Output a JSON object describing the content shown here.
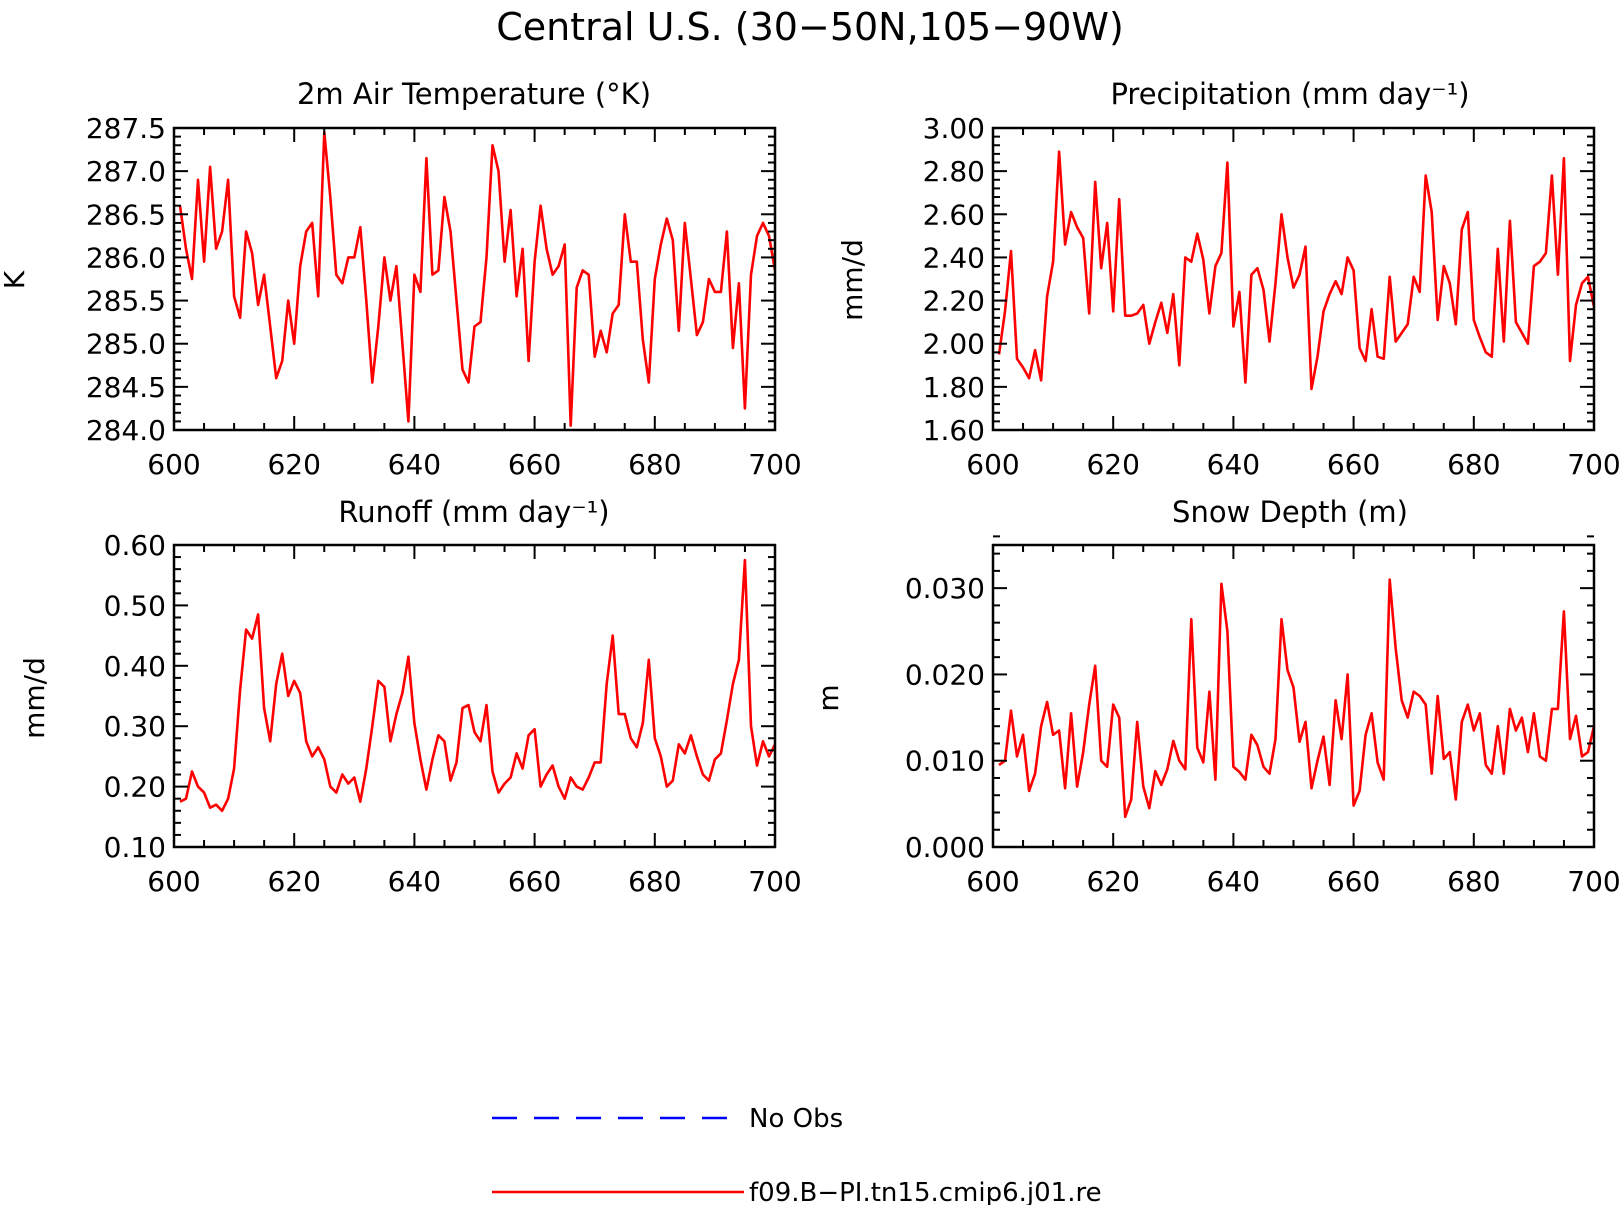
{
  "title": "Central U.S. (30−50N,105−90W)",
  "colors": {
    "model": "#ff0000",
    "obs": "#0000ff"
  },
  "legend": {
    "items": [
      {
        "label": "No Obs",
        "style": "dashed",
        "color": "#0000ff"
      },
      {
        "label": "f09.B−PI.tn15.cmip6.j01.re",
        "style": "solid",
        "color": "#ff0000"
      }
    ]
  },
  "chart_data": [
    {
      "type": "line",
      "title": "2m Air Temperature (°K)",
      "xlabel": "",
      "ylabel": "K",
      "xlim": [
        600,
        700
      ],
      "ylim": [
        284.0,
        287.5
      ],
      "xticks": [
        "600",
        "620",
        "640",
        "660",
        "680",
        "700"
      ],
      "yticks": [
        "284.0",
        "284.5",
        "285.0",
        "285.5",
        "286.0",
        "286.5",
        "287.0",
        "287.5"
      ],
      "x_start": 601,
      "series": [
        {
          "name": "f09.B−PI.tn15.cmip6.j01.re",
          "values": [
            286.6,
            286.1,
            285.75,
            286.9,
            285.95,
            287.05,
            286.1,
            286.3,
            286.9,
            285.55,
            285.3,
            286.3,
            286.05,
            285.45,
            285.8,
            285.2,
            284.6,
            284.8,
            285.5,
            285.0,
            285.9,
            286.3,
            286.4,
            285.55,
            287.45,
            286.7,
            285.8,
            285.7,
            286.0,
            286.0,
            286.35,
            285.5,
            284.55,
            285.2,
            286.0,
            285.5,
            285.9,
            285.0,
            284.1,
            285.8,
            285.6,
            287.15,
            285.8,
            285.85,
            286.7,
            286.3,
            285.5,
            284.7,
            284.55,
            285.2,
            285.25,
            286.0,
            287.3,
            287.0,
            285.95,
            286.55,
            285.55,
            286.1,
            284.8,
            285.95,
            286.6,
            286.1,
            285.8,
            285.9,
            286.15,
            284.05,
            285.65,
            285.85,
            285.8,
            284.85,
            285.15,
            284.9,
            285.35,
            285.45,
            286.5,
            285.95,
            285.95,
            285.05,
            284.55,
            285.75,
            286.15,
            286.45,
            286.2,
            285.15,
            286.4,
            285.75,
            285.1,
            285.25,
            285.75,
            285.6,
            285.6,
            286.3,
            284.95,
            285.7,
            284.25,
            285.8,
            286.25,
            286.4,
            286.25,
            285.85
          ]
        }
      ]
    },
    {
      "type": "line",
      "title": "Precipitation (mm day⁻¹)",
      "xlabel": "",
      "ylabel": "mm/d",
      "xlim": [
        600,
        700
      ],
      "ylim": [
        1.6,
        3.0
      ],
      "xticks": [
        "600",
        "620",
        "640",
        "660",
        "680",
        "700"
      ],
      "yticks": [
        "1.60",
        "1.80",
        "2.00",
        "2.20",
        "2.40",
        "2.60",
        "2.80",
        "3.00"
      ],
      "x_start": 601,
      "series": [
        {
          "name": "f09.B−PI.tn15.cmip6.j01.re",
          "values": [
            1.95,
            2.15,
            2.43,
            1.93,
            1.89,
            1.84,
            1.97,
            1.83,
            2.22,
            2.38,
            2.89,
            2.46,
            2.61,
            2.54,
            2.49,
            2.14,
            2.75,
            2.35,
            2.56,
            2.15,
            2.67,
            2.13,
            2.13,
            2.14,
            2.18,
            2.0,
            2.1,
            2.19,
            2.05,
            2.23,
            1.9,
            2.4,
            2.38,
            2.51,
            2.39,
            2.14,
            2.36,
            2.42,
            2.84,
            2.08,
            2.24,
            1.82,
            2.32,
            2.35,
            2.25,
            2.01,
            2.28,
            2.6,
            2.4,
            2.26,
            2.32,
            2.45,
            1.79,
            1.94,
            2.15,
            2.23,
            2.29,
            2.23,
            2.4,
            2.34,
            1.98,
            1.92,
            2.16,
            1.94,
            1.93,
            2.31,
            2.01,
            2.05,
            2.09,
            2.31,
            2.24,
            2.78,
            2.61,
            2.11,
            2.36,
            2.28,
            2.09,
            2.53,
            2.61,
            2.11,
            2.03,
            1.96,
            1.94,
            2.44,
            2.01,
            2.57,
            2.1,
            2.05,
            2.0,
            2.36,
            2.38,
            2.42,
            2.78,
            2.32,
            2.86,
            1.92,
            2.18,
            2.28,
            2.31,
            2.17
          ]
        }
      ]
    },
    {
      "type": "line",
      "title": "Runoff (mm day⁻¹)",
      "xlabel": "",
      "ylabel": "mm/d",
      "xlim": [
        600,
        700
      ],
      "ylim": [
        0.1,
        0.6
      ],
      "xticks": [
        "600",
        "620",
        "640",
        "660",
        "680",
        "700"
      ],
      "yticks": [
        "0.10",
        "0.20",
        "0.30",
        "0.40",
        "0.50",
        "0.60"
      ],
      "x_start": 601,
      "series": [
        {
          "name": "f09.B−PI.tn15.cmip6.j01.re",
          "values": [
            0.175,
            0.18,
            0.225,
            0.2,
            0.19,
            0.165,
            0.17,
            0.16,
            0.18,
            0.23,
            0.36,
            0.46,
            0.445,
            0.485,
            0.33,
            0.275,
            0.37,
            0.42,
            0.35,
            0.375,
            0.355,
            0.275,
            0.25,
            0.265,
            0.245,
            0.2,
            0.19,
            0.22,
            0.205,
            0.215,
            0.175,
            0.23,
            0.3,
            0.375,
            0.365,
            0.275,
            0.32,
            0.355,
            0.415,
            0.305,
            0.245,
            0.195,
            0.245,
            0.285,
            0.275,
            0.21,
            0.24,
            0.33,
            0.335,
            0.29,
            0.275,
            0.335,
            0.225,
            0.19,
            0.205,
            0.215,
            0.255,
            0.23,
            0.285,
            0.295,
            0.2,
            0.22,
            0.235,
            0.2,
            0.18,
            0.215,
            0.2,
            0.195,
            0.215,
            0.24,
            0.24,
            0.37,
            0.45,
            0.32,
            0.32,
            0.28,
            0.265,
            0.305,
            0.41,
            0.28,
            0.25,
            0.2,
            0.21,
            0.27,
            0.255,
            0.285,
            0.25,
            0.22,
            0.21,
            0.245,
            0.255,
            0.31,
            0.37,
            0.41,
            0.575,
            0.3,
            0.235,
            0.275,
            0.25,
            0.27
          ]
        }
      ]
    },
    {
      "type": "line",
      "title": "Snow Depth (m)",
      "xlabel": "",
      "ylabel": "m",
      "xlim": [
        600,
        700
      ],
      "ylim": [
        0.0,
        0.035
      ],
      "xticks": [
        "600",
        "620",
        "640",
        "660",
        "680",
        "700"
      ],
      "yticks": [
        "0.000",
        "0.010",
        "0.020",
        "0.030"
      ],
      "x_start": 601,
      "series": [
        {
          "name": "f09.B−PI.tn15.cmip6.j01.re",
          "values": [
            0.0095,
            0.01,
            0.0158,
            0.0105,
            0.013,
            0.0065,
            0.0085,
            0.014,
            0.0168,
            0.013,
            0.0135,
            0.0068,
            0.0155,
            0.007,
            0.011,
            0.0165,
            0.021,
            0.01,
            0.0093,
            0.0165,
            0.015,
            0.0035,
            0.0055,
            0.0145,
            0.007,
            0.0045,
            0.0088,
            0.0072,
            0.009,
            0.0123,
            0.01,
            0.009,
            0.0264,
            0.0115,
            0.0098,
            0.018,
            0.0078,
            0.0305,
            0.025,
            0.0093,
            0.0087,
            0.0078,
            0.013,
            0.0118,
            0.0093,
            0.0085,
            0.0125,
            0.0264,
            0.0205,
            0.0185,
            0.0122,
            0.0145,
            0.0068,
            0.01,
            0.0128,
            0.0072,
            0.017,
            0.0125,
            0.02,
            0.0048,
            0.0065,
            0.013,
            0.0155,
            0.0098,
            0.0078,
            0.031,
            0.023,
            0.017,
            0.015,
            0.018,
            0.0175,
            0.0165,
            0.0085,
            0.0175,
            0.0102,
            0.011,
            0.0055,
            0.0145,
            0.0165,
            0.0135,
            0.0155,
            0.0095,
            0.0085,
            0.014,
            0.0085,
            0.016,
            0.0135,
            0.015,
            0.011,
            0.0155,
            0.0105,
            0.01,
            0.016,
            0.016,
            0.0273,
            0.0125,
            0.0152,
            0.0105,
            0.011,
            0.014
          ]
        }
      ]
    }
  ]
}
